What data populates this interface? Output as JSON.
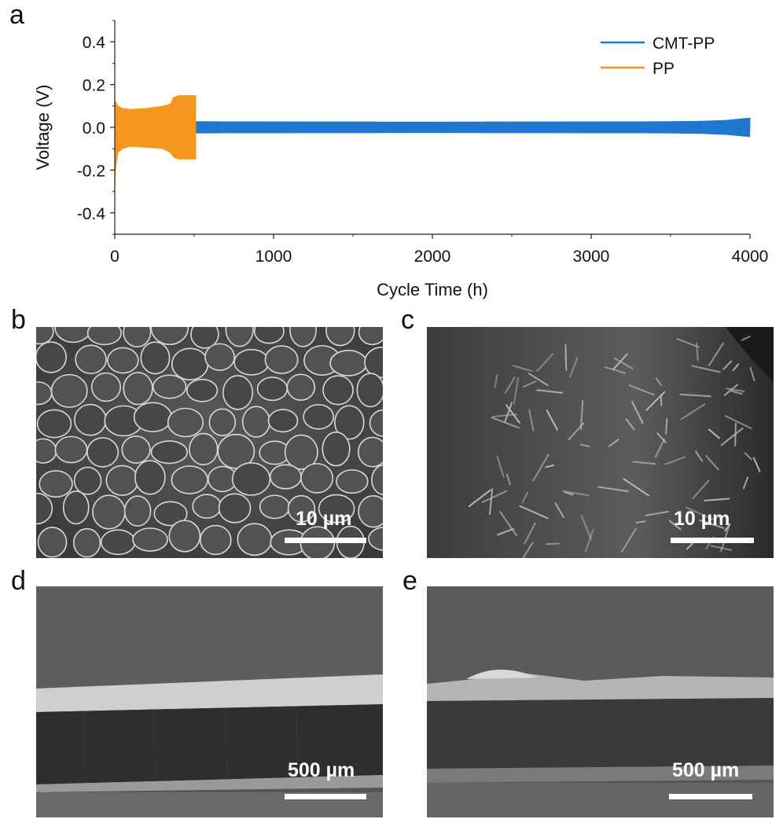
{
  "panels": {
    "a": "a",
    "b": "b",
    "c": "c",
    "d": "d",
    "e": "e"
  },
  "scalebars": {
    "b": "10 µm",
    "c": "10 µm",
    "d": "500 µm",
    "e": "500 µm"
  },
  "chart_data": {
    "type": "line",
    "xlabel": "Cycle Time (h)",
    "ylabel": "Voltage (V)",
    "xlim": [
      0,
      4000
    ],
    "ylim": [
      -0.5,
      0.5
    ],
    "xticks": [
      "0",
      "1000",
      "2000",
      "3000",
      "4000"
    ],
    "yticks": [
      "0.4",
      "0.2",
      "0.0",
      "-0.2",
      "-0.4"
    ],
    "ytick_values": [
      0.4,
      0.2,
      0.0,
      -0.2,
      -0.4
    ],
    "xtick_values": [
      0,
      1000,
      2000,
      3000,
      4000
    ],
    "legend_position": "top-right",
    "series": [
      {
        "name": "CMT-PP",
        "color": "#1f77d0",
        "envelope": {
          "x": [
            0,
            500,
            1000,
            2000,
            3000,
            3500,
            3700,
            3850,
            4000
          ],
          "upper": [
            0.03,
            0.028,
            0.027,
            0.026,
            0.027,
            0.028,
            0.03,
            0.034,
            0.045
          ],
          "lower": [
            -0.03,
            -0.028,
            -0.027,
            -0.026,
            -0.027,
            -0.028,
            -0.03,
            -0.035,
            -0.045
          ]
        }
      },
      {
        "name": "PP",
        "color": "#f5961e",
        "envelope": {
          "x": [
            0,
            5,
            20,
            50,
            100,
            200,
            300,
            350,
            370,
            400,
            450,
            500,
            510
          ],
          "upper": [
            0.13,
            0.12,
            0.1,
            0.09,
            0.085,
            0.09,
            0.1,
            0.11,
            0.14,
            0.15,
            0.15,
            0.15,
            0.15
          ],
          "lower": [
            -0.28,
            -0.2,
            -0.12,
            -0.1,
            -0.09,
            -0.095,
            -0.1,
            -0.12,
            -0.14,
            -0.15,
            -0.15,
            -0.15,
            -0.15
          ]
        }
      }
    ]
  }
}
